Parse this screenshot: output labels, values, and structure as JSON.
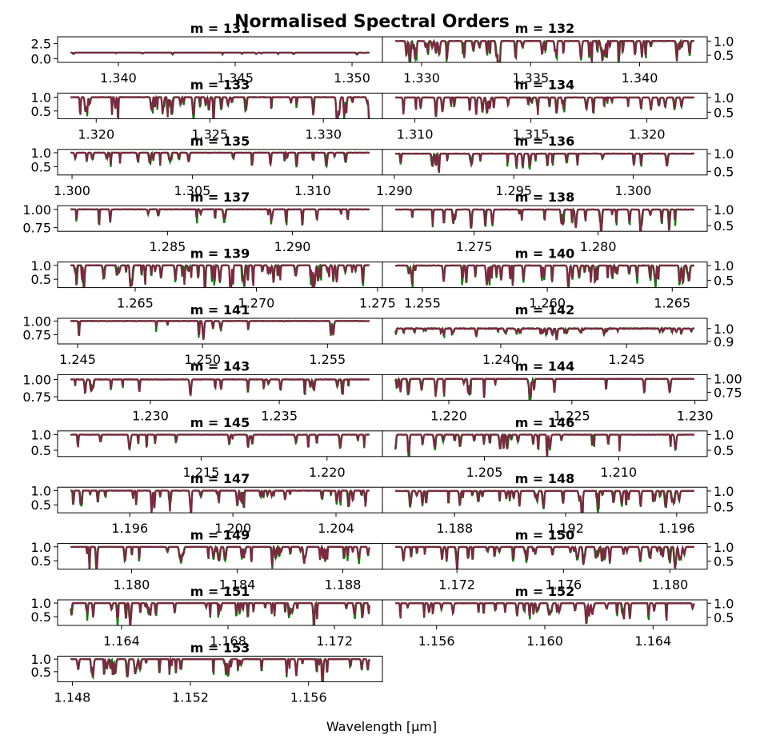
{
  "figure_title": "Normalised Spectral Orders",
  "xlabel": "Wavelength [μm]",
  "colors": {
    "series_a": "#008000",
    "series_b": "#7e2642"
  },
  "chart_data": [
    {
      "type": "line",
      "title": "m = 131",
      "xlim": [
        1.3374,
        1.3513
      ],
      "xticks": [
        "1.340",
        "1.345",
        "1.350"
      ],
      "ylim": [
        -0.6,
        3.6
      ],
      "yticks": [
        "0.0",
        "2.5"
      ],
      "depth": 0.25,
      "density": 12
    },
    {
      "type": "line",
      "title": "m = 132",
      "xlim": [
        1.3282,
        1.3431
      ],
      "xticks": [
        "1.330",
        "1.335",
        "1.340"
      ],
      "ylim": [
        0.25,
        1.15
      ],
      "yticks": [
        "0.5",
        "1.0"
      ],
      "depth": 0.7,
      "density": 55
    },
    {
      "type": "line",
      "title": "m = 133",
      "xlim": [
        1.3183,
        1.3326
      ],
      "xticks": [
        "1.320",
        "1.325",
        "1.330"
      ],
      "ylim": [
        0.22,
        1.15
      ],
      "yticks": [
        "0.5",
        "1.0"
      ],
      "depth": 0.7,
      "density": 45
    },
    {
      "type": "line",
      "title": "m = 134",
      "xlim": [
        1.3086,
        1.3226
      ],
      "xticks": [
        "1.310",
        "1.315",
        "1.320"
      ],
      "ylim": [
        0.28,
        1.15
      ],
      "yticks": [
        "0.5",
        "1.0"
      ],
      "depth": 0.6,
      "density": 35
    },
    {
      "type": "line",
      "title": "m = 135",
      "xlim": [
        1.2994,
        1.3129
      ],
      "xticks": [
        "1.300",
        "1.305",
        "1.310"
      ],
      "ylim": [
        0.2,
        1.12
      ],
      "yticks": [
        "0.5",
        "1.0"
      ],
      "depth": 0.55,
      "density": 25
    },
    {
      "type": "line",
      "title": "m = 136",
      "xlim": [
        1.2895,
        1.3031
      ],
      "xticks": [
        "1.290",
        "1.295",
        "1.300"
      ],
      "ylim": [
        0.4,
        1.12
      ],
      "yticks": [
        "0.5",
        "1.0"
      ],
      "depth": 0.5,
      "density": 22
    },
    {
      "type": "line",
      "title": "m = 137",
      "xlim": [
        1.2806,
        1.2936
      ],
      "xticks": [
        "1.285",
        "1.290"
      ],
      "ylim": [
        0.7,
        1.05
      ],
      "yticks": [
        "0.75",
        "1.00"
      ],
      "depth": 0.25,
      "density": 18
    },
    {
      "type": "line",
      "title": "m = 138",
      "xlim": [
        1.2713,
        1.2844
      ],
      "xticks": [
        "1.275",
        "1.280"
      ],
      "ylim": [
        0.32,
        1.12
      ],
      "yticks": [
        "0.5",
        "1.0"
      ],
      "depth": 0.6,
      "density": 30
    },
    {
      "type": "line",
      "title": "m = 139",
      "xlim": [
        1.2618,
        1.2752
      ],
      "xticks": [
        "1.265",
        "1.270",
        "1.275"
      ],
      "ylim": [
        0.2,
        1.12
      ],
      "yticks": [
        "0.5",
        "1.0"
      ],
      "depth": 0.75,
      "density": 60
    },
    {
      "type": "line",
      "title": "m = 140",
      "xlim": [
        1.2534,
        1.2664
      ],
      "xticks": [
        "1.255",
        "1.260",
        "1.265"
      ],
      "ylim": [
        0.25,
        1.12
      ],
      "yticks": [
        "0.5",
        "1.0"
      ],
      "depth": 0.7,
      "density": 50
    },
    {
      "type": "line",
      "title": "m = 141",
      "xlim": [
        1.2442,
        1.2572
      ],
      "xticks": [
        "1.245",
        "1.250",
        "1.255"
      ],
      "ylim": [
        0.58,
        1.05
      ],
      "yticks": [
        "0.75",
        "1.00"
      ],
      "depth": 0.4,
      "density": 10
    },
    {
      "type": "line",
      "title": "m = 142",
      "xlim": [
        1.2353,
        1.2482
      ],
      "xticks": [
        "1.240",
        "1.245"
      ],
      "ylim": [
        0.88,
        1.08
      ],
      "yticks": [
        "0.9",
        "1.0"
      ],
      "depth": 0.05,
      "density": 40
    },
    {
      "type": "line",
      "title": "m = 143",
      "xlim": [
        1.2264,
        1.239
      ],
      "xticks": [
        "1.230",
        "1.235"
      ],
      "ylim": [
        0.7,
        1.07
      ],
      "yticks": [
        "0.75",
        "1.00"
      ],
      "depth": 0.25,
      "density": 20
    },
    {
      "type": "line",
      "title": "m = 144",
      "xlim": [
        1.2173,
        1.2305
      ],
      "xticks": [
        "1.220",
        "1.225",
        "1.230"
      ],
      "ylim": [
        0.6,
        1.08
      ],
      "yticks": [
        "0.75",
        "1.00"
      ],
      "depth": 0.35,
      "density": 25
    },
    {
      "type": "line",
      "title": "m = 145",
      "xlim": [
        1.2093,
        1.2222
      ],
      "xticks": [
        "1.215",
        "1.220"
      ],
      "ylim": [
        0.3,
        1.12
      ],
      "yticks": [
        "0.5",
        "1.0"
      ],
      "depth": 0.45,
      "density": 20
    },
    {
      "type": "line",
      "title": "m = 146",
      "xlim": [
        1.2012,
        1.2133
      ],
      "xticks": [
        "1.205",
        "1.210"
      ],
      "ylim": [
        0.3,
        1.12
      ],
      "yticks": [
        "0.5",
        "1.0"
      ],
      "depth": 0.55,
      "density": 30
    },
    {
      "type": "line",
      "title": "m = 147",
      "xlim": [
        1.1932,
        1.2058
      ],
      "xticks": [
        "1.196",
        "1.200",
        "1.204"
      ],
      "ylim": [
        0.22,
        1.12
      ],
      "yticks": [
        "0.5",
        "1.0"
      ],
      "depth": 0.6,
      "density": 40
    },
    {
      "type": "line",
      "title": "m = 148",
      "xlim": [
        1.1854,
        1.1971
      ],
      "xticks": [
        "1.188",
        "1.192",
        "1.196"
      ],
      "ylim": [
        0.3,
        1.12
      ],
      "yticks": [
        "0.5",
        "1.0"
      ],
      "depth": 0.55,
      "density": 40
    },
    {
      "type": "line",
      "title": "m = 149",
      "xlim": [
        1.1772,
        1.1895
      ],
      "xticks": [
        "1.180",
        "1.184",
        "1.188"
      ],
      "ylim": [
        0.2,
        1.12
      ],
      "yticks": [
        "0.5",
        "1.0"
      ],
      "depth": 0.6,
      "density": 45
    },
    {
      "type": "line",
      "title": "m = 150",
      "xlim": [
        1.1692,
        1.1814
      ],
      "xticks": [
        "1.172",
        "1.176",
        "1.180"
      ],
      "ylim": [
        0.22,
        1.12
      ],
      "yticks": [
        "0.5",
        "1.0"
      ],
      "depth": 0.6,
      "density": 45
    },
    {
      "type": "line",
      "title": "m = 151",
      "xlim": [
        1.1616,
        1.1738
      ],
      "xticks": [
        "1.164",
        "1.168",
        "1.172"
      ],
      "ylim": [
        0.18,
        1.12
      ],
      "yticks": [
        "0.5",
        "1.0"
      ],
      "depth": 0.6,
      "density": 45
    },
    {
      "type": "line",
      "title": "m = 152",
      "xlim": [
        1.154,
        1.166
      ],
      "xticks": [
        "1.156",
        "1.160",
        "1.164"
      ],
      "ylim": [
        0.22,
        1.12
      ],
      "yticks": [
        "0.5",
        "1.0"
      ],
      "depth": 0.6,
      "density": 40
    },
    {
      "type": "line",
      "title": "m = 153",
      "xlim": [
        1.1475,
        1.1585
      ],
      "xticks": [
        "1.148",
        "1.152",
        "1.156"
      ],
      "ylim": [
        0.1,
        1.12
      ],
      "yticks": [
        "0.5",
        "1.0"
      ],
      "depth": 0.75,
      "density": 40
    }
  ]
}
